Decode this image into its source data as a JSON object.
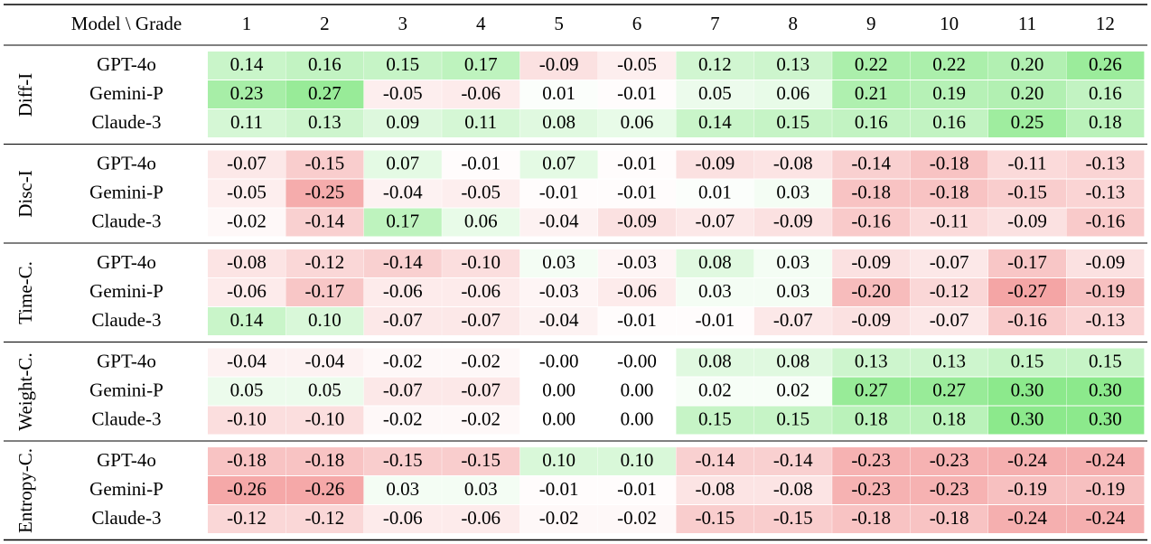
{
  "header": {
    "corner": "Model \\ Grade",
    "grades": [
      "1",
      "2",
      "3",
      "4",
      "5",
      "6",
      "7",
      "8",
      "9",
      "10",
      "11",
      "12"
    ]
  },
  "groups": [
    {
      "name": "Diff-I",
      "rows": [
        {
          "model": "GPT-4o",
          "cells": [
            "0.14",
            "0.16",
            "0.15",
            "0.17",
            "-0.09",
            "-0.05",
            "0.12",
            "0.13",
            "0.22",
            "0.22",
            "0.20",
            "0.26"
          ]
        },
        {
          "model": "Gemini-P",
          "cells": [
            "0.23",
            "0.27",
            "-0.05",
            "-0.06",
            "0.01",
            "-0.01",
            "0.05",
            "0.06",
            "0.21",
            "0.19",
            "0.20",
            "0.16"
          ]
        },
        {
          "model": "Claude-3",
          "cells": [
            "0.11",
            "0.13",
            "0.09",
            "0.11",
            "0.08",
            "0.06",
            "0.14",
            "0.15",
            "0.16",
            "0.16",
            "0.25",
            "0.18"
          ]
        }
      ]
    },
    {
      "name": "Disc-I",
      "rows": [
        {
          "model": "GPT-4o",
          "cells": [
            "-0.07",
            "-0.15",
            "0.07",
            "-0.01",
            "0.07",
            "-0.01",
            "-0.09",
            "-0.08",
            "-0.14",
            "-0.18",
            "-0.11",
            "-0.13"
          ]
        },
        {
          "model": "Gemini-P",
          "cells": [
            "-0.05",
            "-0.25",
            "-0.04",
            "-0.05",
            "-0.01",
            "-0.01",
            "0.01",
            "0.03",
            "-0.18",
            "-0.18",
            "-0.15",
            "-0.13"
          ]
        },
        {
          "model": "Claude-3",
          "cells": [
            "-0.02",
            "-0.14",
            "0.17",
            "0.06",
            "-0.04",
            "-0.09",
            "-0.07",
            "-0.09",
            "-0.16",
            "-0.11",
            "-0.09",
            "-0.16"
          ]
        }
      ]
    },
    {
      "name": "Time-C.",
      "rows": [
        {
          "model": "GPT-4o",
          "cells": [
            "-0.08",
            "-0.12",
            "-0.14",
            "-0.10",
            "0.03",
            "-0.03",
            "0.08",
            "0.03",
            "-0.09",
            "-0.07",
            "-0.17",
            "-0.09"
          ]
        },
        {
          "model": "Gemini-P",
          "cells": [
            "-0.06",
            "-0.17",
            "-0.06",
            "-0.06",
            "-0.03",
            "-0.06",
            "0.03",
            "0.03",
            "-0.20",
            "-0.12",
            "-0.27",
            "-0.19"
          ]
        },
        {
          "model": "Claude-3",
          "cells": [
            "0.14",
            "0.10",
            "-0.07",
            "-0.07",
            "-0.04",
            "-0.01",
            "-0.01",
            "-0.07",
            "-0.09",
            "-0.07",
            "-0.16",
            "-0.13"
          ]
        }
      ]
    },
    {
      "name": "Weight-C.",
      "rows": [
        {
          "model": "GPT-4o",
          "cells": [
            "-0.04",
            "-0.04",
            "-0.02",
            "-0.02",
            "-0.00",
            "-0.00",
            "0.08",
            "0.08",
            "0.13",
            "0.13",
            "0.15",
            "0.15"
          ]
        },
        {
          "model": "Gemini-P",
          "cells": [
            "0.05",
            "0.05",
            "-0.07",
            "-0.07",
            "0.00",
            "0.00",
            "0.02",
            "0.02",
            "0.27",
            "0.27",
            "0.30",
            "0.30"
          ]
        },
        {
          "model": "Claude-3",
          "cells": [
            "-0.10",
            "-0.10",
            "-0.02",
            "-0.02",
            "0.00",
            "0.00",
            "0.15",
            "0.15",
            "0.18",
            "0.18",
            "0.30",
            "0.30"
          ]
        }
      ]
    },
    {
      "name": "Entropy-C.",
      "rows": [
        {
          "model": "GPT-4o",
          "cells": [
            "-0.18",
            "-0.18",
            "-0.15",
            "-0.15",
            "0.10",
            "0.10",
            "-0.14",
            "-0.14",
            "-0.23",
            "-0.23",
            "-0.24",
            "-0.24"
          ]
        },
        {
          "model": "Gemini-P",
          "cells": [
            "-0.26",
            "-0.26",
            "0.03",
            "0.03",
            "-0.01",
            "-0.01",
            "-0.08",
            "-0.08",
            "-0.23",
            "-0.23",
            "-0.19",
            "-0.19"
          ]
        },
        {
          "model": "Claude-3",
          "cells": [
            "-0.12",
            "-0.12",
            "-0.06",
            "-0.06",
            "-0.02",
            "-0.02",
            "-0.15",
            "-0.15",
            "-0.18",
            "-0.18",
            "-0.24",
            "-0.24"
          ]
        }
      ]
    }
  ]
}
